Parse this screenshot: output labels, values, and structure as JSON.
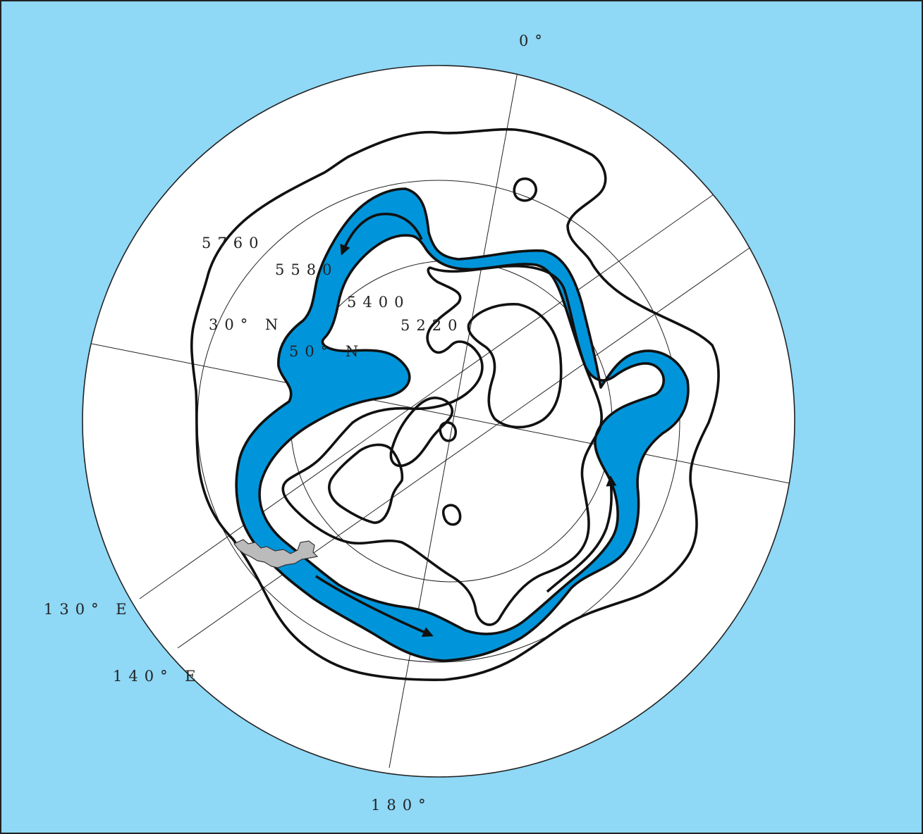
{
  "map": {
    "labels": {
      "lon_0": "0°",
      "lon_180": "180°",
      "lon_130e": "130° E",
      "lon_140e": "140° E",
      "lat_30n": "30° N",
      "lat_50n": "50° N"
    },
    "contours": [
      "5760",
      "5580",
      "5400",
      "5220"
    ],
    "colors": {
      "ocean": "#8fd8f6",
      "band": "#0095da",
      "land": "#bbbbbb",
      "line": "#111111",
      "disc": "#ffffff"
    },
    "icons": [
      "arrow-icon",
      "japan-landmass"
    ]
  }
}
